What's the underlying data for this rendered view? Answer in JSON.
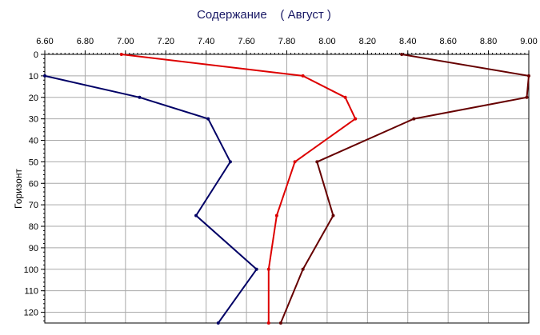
{
  "chart_data": {
    "type": "line",
    "title": "Содержание    ( Август )",
    "xlabel": "",
    "ylabel": "Горизонт",
    "xlim": [
      6.6,
      9.0
    ],
    "ylim": [
      0,
      125
    ],
    "y_inverted": true,
    "x_axis_position": "top",
    "grid": true,
    "x_ticks": [
      "6.60",
      "6.80",
      "7.00",
      "7.20",
      "7.40",
      "7.60",
      "7.80",
      "8.00",
      "8.20",
      "8.40",
      "8.60",
      "8.80",
      "9.00"
    ],
    "y_ticks": [
      "0",
      "10",
      "20",
      "30",
      "40",
      "50",
      "60",
      "70",
      "80",
      "90",
      "100",
      "110",
      "120"
    ],
    "series": [
      {
        "color": "#000066",
        "points": [
          [
            6.6,
            10
          ],
          [
            7.07,
            20
          ],
          [
            7.41,
            30
          ],
          [
            7.52,
            50
          ],
          [
            7.35,
            75
          ],
          [
            7.65,
            100
          ],
          [
            7.46,
            125
          ]
        ]
      },
      {
        "color": "#dd0000",
        "points": [
          [
            6.98,
            0
          ],
          [
            7.88,
            10
          ],
          [
            8.09,
            20
          ],
          [
            8.14,
            30
          ],
          [
            7.84,
            50
          ],
          [
            7.75,
            75
          ],
          [
            7.71,
            100
          ],
          [
            7.71,
            125
          ]
        ]
      },
      {
        "color": "#660000",
        "points": [
          [
            8.37,
            0
          ],
          [
            9.0,
            10
          ],
          [
            8.99,
            20
          ],
          [
            8.43,
            30
          ],
          [
            7.95,
            50
          ],
          [
            8.03,
            75
          ],
          [
            7.88,
            100
          ],
          [
            7.77,
            125
          ]
        ]
      }
    ]
  }
}
